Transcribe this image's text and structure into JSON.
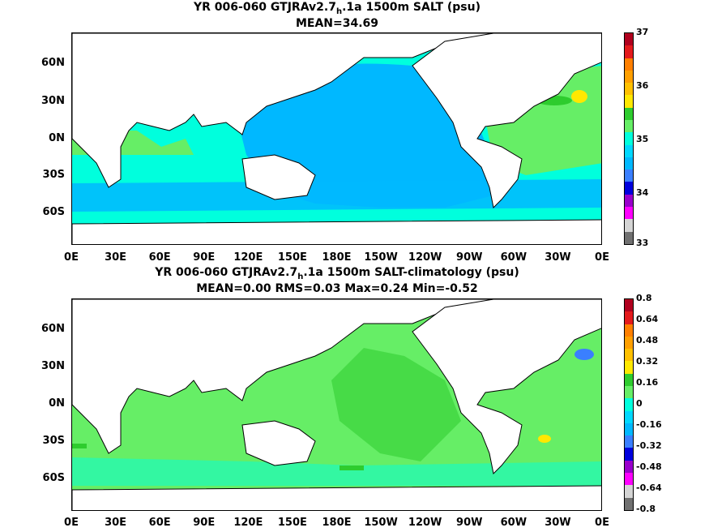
{
  "panel1": {
    "title_pre": "YR 006-060 GTJRAv2.7",
    "title_sub": "h",
    "title_post": ".1a 1500m SALT (psu)",
    "stats": "MEAN=34.69",
    "colorbar_labels": [
      "37",
      "36",
      "35",
      "34",
      "33"
    ],
    "colorbar_colors": [
      "#b0001e",
      "#e31a1c",
      "#ff7f00",
      "#ff9f00",
      "#ffc000",
      "#ffe800",
      "#2ecc2e",
      "#66ee66",
      "#00ffdd",
      "#00d8ff",
      "#00b8ff",
      "#3a7fff",
      "#0000dd",
      "#9900cc",
      "#ff00ff",
      "#d4d4d4",
      "#707070"
    ]
  },
  "panel2": {
    "title_pre": "YR 006-060 GTJRAv2.7",
    "title_sub": "h",
    "title_post": ".1a 1500m SALT-climatology (psu)",
    "stats": "MEAN=0.00   RMS=0.03   Max=0.24   Min=-0.52",
    "colorbar_labels": [
      "0.8",
      "0.64",
      "0.48",
      "0.32",
      "0.16",
      "0",
      "-0.16",
      "-0.32",
      "-0.48",
      "-0.64",
      "-0.8"
    ],
    "colorbar_colors": [
      "#b0001e",
      "#e31a1c",
      "#ff7f00",
      "#ff9f00",
      "#ffc000",
      "#ffe800",
      "#2ecc2e",
      "#66ee66",
      "#00ffdd",
      "#00d8ff",
      "#00b8ff",
      "#3a7fff",
      "#0000dd",
      "#9900cc",
      "#ff00ff",
      "#d4d4d4",
      "#707070"
    ]
  },
  "lat_labels": [
    "60N",
    "30N",
    "0N",
    "30S",
    "60S"
  ],
  "lon_labels": [
    "0E",
    "30E",
    "60E",
    "90E",
    "120E",
    "150E",
    "180E",
    "150W",
    "120W",
    "90W",
    "60W",
    "30W",
    "0E"
  ],
  "colors": {
    "land": "#ffffff",
    "coast": "#000000",
    "field_35_0": "#66ee66",
    "field_34_8": "#00ffdd",
    "field_34_6": "#00b8ff",
    "field_34_4": "#3a7fff",
    "anom_0": "#66ee66",
    "anom_pos": "#2ecc2e",
    "anom_neg": "#00ffdd"
  }
}
